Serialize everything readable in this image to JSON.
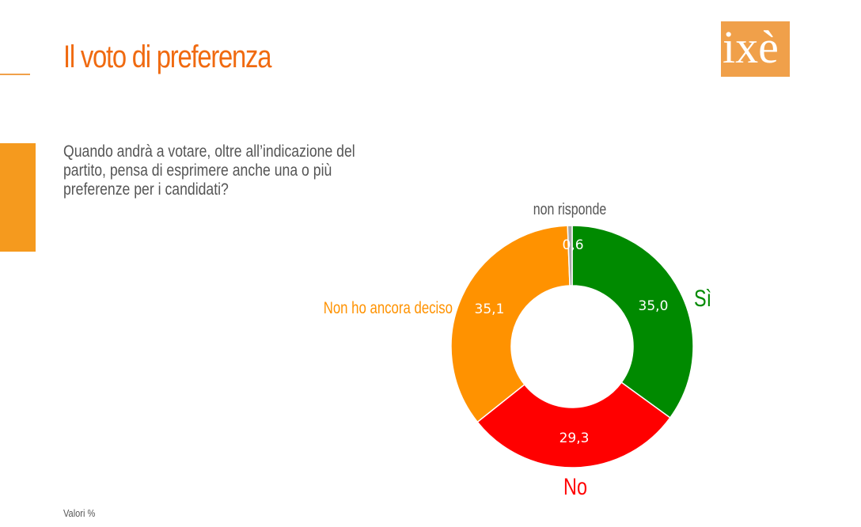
{
  "page": {
    "title": "Il voto di preferenza",
    "question": "Quando andrà a votare, oltre all’indicazione del partito, pensa di esprimere anche una o più preferenze per i candidati?",
    "footnote": "Valori %",
    "logo_text": "ixè",
    "colors": {
      "accent": "#f06a10",
      "side_bar": "#f59a1e",
      "logo_bg": "#f0a04a"
    }
  },
  "chart_data": {
    "type": "donut",
    "slices": [
      {
        "label": "Sì",
        "value": 35.0,
        "display": "35,0",
        "color": "#008a00"
      },
      {
        "label": "No",
        "value": 29.3,
        "display": "29,3",
        "color": "#ff0000"
      },
      {
        "label": "Non ho ancora deciso",
        "value": 35.1,
        "display": "35,1",
        "color": "#ff9200"
      },
      {
        "label": "non risponde",
        "value": 0.6,
        "display": "0,6",
        "color": "#a6a6a6"
      }
    ]
  }
}
